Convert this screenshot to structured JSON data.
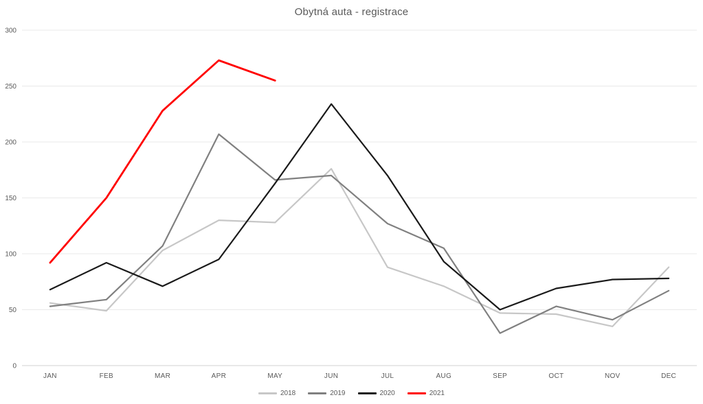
{
  "title": "Obytná auta - registrace",
  "colors": {
    "background": "#ffffff",
    "title_text": "#595959",
    "axis_text": "#595959",
    "gridline": "#e9e9e9",
    "axis_line": "#d0d0d0"
  },
  "chart_data": {
    "type": "line",
    "title": "Obytná auta - registrace",
    "categories": [
      "JAN",
      "FEB",
      "MAR",
      "APR",
      "MAY",
      "JUN",
      "JUL",
      "AUG",
      "SEP",
      "OCT",
      "NOV",
      "DEC"
    ],
    "series": [
      {
        "name": "2018",
        "color": "#c7c7c7",
        "thickness": 2.2,
        "values": [
          56,
          49,
          103,
          130,
          128,
          176,
          88,
          71,
          47,
          46,
          35,
          88
        ]
      },
      {
        "name": "2019",
        "color": "#808080",
        "thickness": 2.2,
        "values": [
          53,
          59,
          107,
          207,
          166,
          170,
          127,
          105,
          29,
          53,
          41,
          67
        ]
      },
      {
        "name": "2020",
        "color": "#1a1a1a",
        "thickness": 2.2,
        "values": [
          68,
          92,
          71,
          95,
          163,
          234,
          170,
          93,
          50,
          69,
          77,
          78
        ]
      },
      {
        "name": "2021",
        "color": "#ff0000",
        "thickness": 2.8,
        "values": [
          92,
          150,
          228,
          273,
          255
        ]
      }
    ],
    "ylim": [
      0,
      300
    ],
    "yticks": [
      0,
      50,
      100,
      150,
      200,
      250,
      300
    ],
    "grid": true,
    "legend_position": "bottom",
    "legend_entries": [
      "2018",
      "2019",
      "2020",
      "2021"
    ]
  }
}
